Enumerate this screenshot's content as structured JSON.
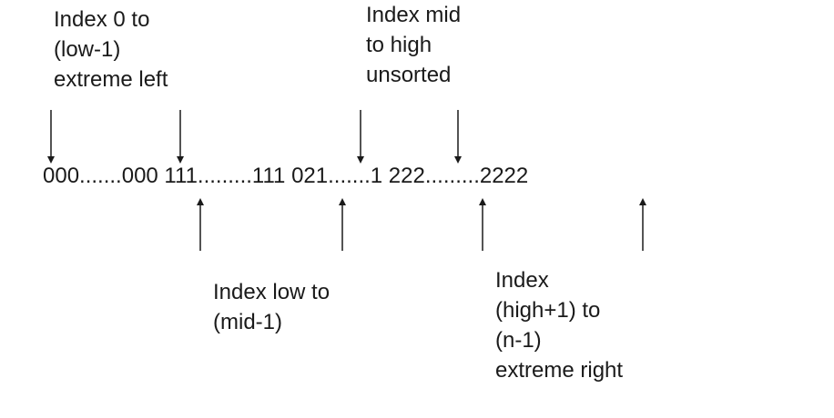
{
  "sequence_text": "000.......000 111.........111 021.......1 222.........2222",
  "labels": {
    "left_segment": [
      "Index 0 to",
      "(low-1)",
      "extreme left"
    ],
    "unsorted_segment": [
      "Index mid",
      "to high",
      "unsorted"
    ],
    "middle_segment": [
      "Index low to",
      "(mid-1)"
    ],
    "right_segment": [
      "Index",
      "(high+1) to",
      "(n-1)",
      "extreme right"
    ]
  }
}
